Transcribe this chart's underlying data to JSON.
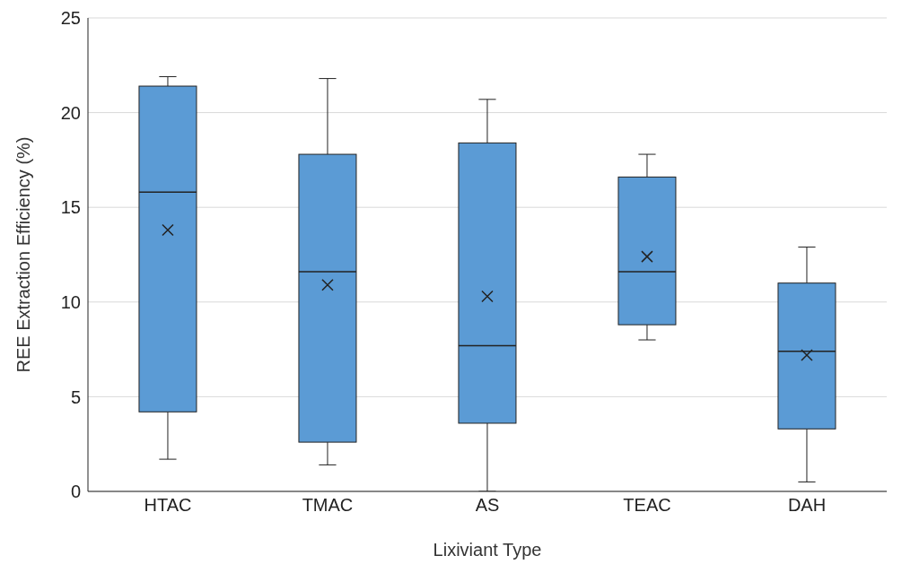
{
  "chart_data": {
    "type": "box",
    "xlabel": "Lixiviant Type",
    "ylabel": "REE Extraction Efficiency (%)",
    "categories": [
      "HTAC",
      "TMAC",
      "AS",
      "TEAC",
      "DAH"
    ],
    "color": "#5b9bd5",
    "ylim": [
      0,
      25
    ],
    "yticks": [
      0,
      5,
      10,
      15,
      20,
      25
    ],
    "grid": "y",
    "marker": "cross",
    "boxes": [
      {
        "low": 1.7,
        "q1": 4.2,
        "median": 15.8,
        "q3": 21.4,
        "high": 21.9,
        "mean": 13.8
      },
      {
        "low": 1.4,
        "q1": 2.6,
        "median": 11.6,
        "q3": 17.8,
        "high": 21.8,
        "mean": 10.9
      },
      {
        "low": 0,
        "q1": 3.6,
        "median": 7.7,
        "q3": 18.4,
        "high": 20.7,
        "mean": 10.3
      },
      {
        "low": 8.0,
        "q1": 8.8,
        "median": 11.6,
        "q3": 16.6,
        "high": 17.8,
        "mean": 12.4
      },
      {
        "low": 0.5,
        "q1": 3.3,
        "median": 7.4,
        "q3": 11.0,
        "high": 12.9,
        "mean": 7.2
      }
    ]
  }
}
